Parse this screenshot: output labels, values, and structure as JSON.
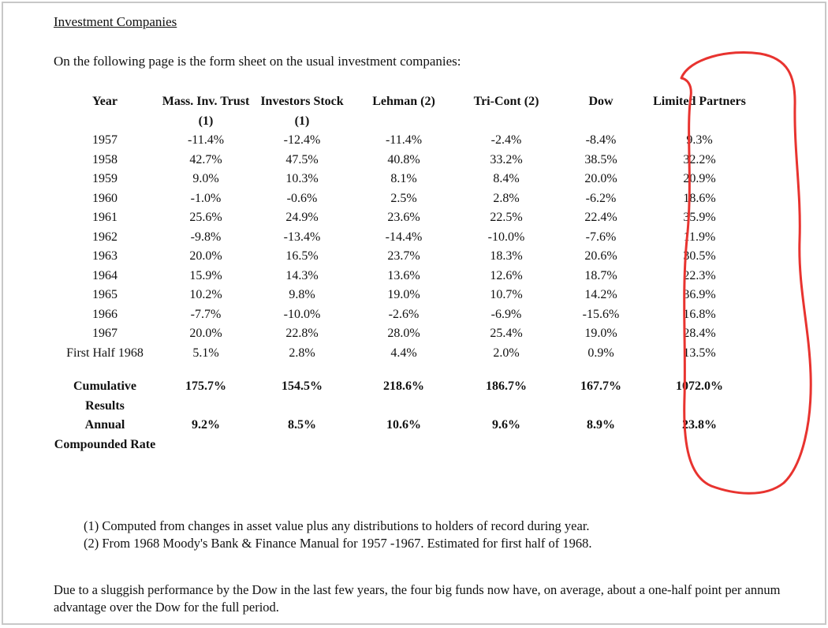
{
  "document": {
    "heading": "Investment Companies",
    "intro": "On the following page is the form sheet on the usual investment companies:",
    "table": {
      "columns": [
        "Year",
        "Mass. Inv. Trust (1)",
        "Investors Stock (1)",
        "Lehman (2)",
        "Tri-Cont (2)",
        "Dow",
        "Limited Partners"
      ],
      "rows": [
        [
          "1957",
          "-11.4%",
          "-12.4%",
          "-11.4%",
          "-2.4%",
          "-8.4%",
          "9.3%"
        ],
        [
          "1958",
          "42.7%",
          "47.5%",
          "40.8%",
          "33.2%",
          "38.5%",
          "32.2%"
        ],
        [
          "1959",
          "9.0%",
          "10.3%",
          "8.1%",
          "8.4%",
          "20.0%",
          "20.9%"
        ],
        [
          "1960",
          "-1.0%",
          "-0.6%",
          "2.5%",
          "2.8%",
          "-6.2%",
          "18.6%"
        ],
        [
          "1961",
          "25.6%",
          "24.9%",
          "23.6%",
          "22.5%",
          "22.4%",
          "35.9%"
        ],
        [
          "1962",
          "-9.8%",
          "-13.4%",
          "-14.4%",
          "-10.0%",
          "-7.6%",
          "11.9%"
        ],
        [
          "1963",
          "20.0%",
          "16.5%",
          "23.7%",
          "18.3%",
          "20.6%",
          "30.5%"
        ],
        [
          "1964",
          "15.9%",
          "14.3%",
          "13.6%",
          "12.6%",
          "18.7%",
          "22.3%"
        ],
        [
          "1965",
          "10.2%",
          "9.8%",
          "19.0%",
          "10.7%",
          "14.2%",
          "36.9%"
        ],
        [
          "1966",
          "-7.7%",
          "-10.0%",
          "-2.6%",
          "-6.9%",
          "-15.6%",
          "16.8%"
        ],
        [
          "1967",
          "20.0%",
          "22.8%",
          "28.0%",
          "25.4%",
          "19.0%",
          "28.4%"
        ],
        [
          "First Half 1968",
          "5.1%",
          "2.8%",
          "4.4%",
          "2.0%",
          "0.9%",
          "13.5%"
        ]
      ],
      "summary": [
        [
          "Cumulative Results",
          "175.7%",
          "154.5%",
          "218.6%",
          "186.7%",
          "167.7%",
          "1072.0%"
        ],
        [
          "Annual Compounded Rate",
          "9.2%",
          "8.5%",
          "10.6%",
          "9.6%",
          "8.9%",
          "23.8%"
        ]
      ]
    },
    "notes": [
      "(1) Computed from changes in asset value plus any distributions to holders of record during year.",
      "(2) From 1968 Moody's Bank & Finance Manual for 1957 -1967. Estimated for first half of 1968."
    ],
    "closing": "Due to a sluggish performance by the Dow in the last few years, the four big funds now have, on average, about a one-half point per annum advantage over the Dow for the full period.",
    "annotation_color": "#e8332f"
  }
}
